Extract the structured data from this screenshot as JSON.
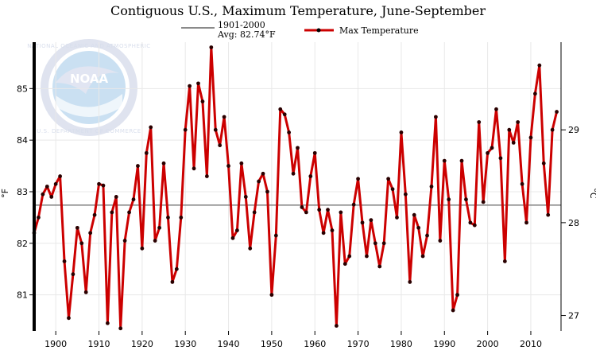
{
  "chart_data": {
    "type": "line",
    "title": "Contiguous U.S., Maximum Temperature, June-September",
    "ylabel": "°F",
    "ylabel_right": "°C",
    "xlim": [
      1895,
      2017
    ],
    "ylim": [
      80.3,
      85.9
    ],
    "xticks": [
      1900,
      1910,
      1920,
      1930,
      1940,
      1950,
      1960,
      1970,
      1980,
      1990,
      2000,
      2010
    ],
    "yticks": [
      81,
      82,
      83,
      84,
      85
    ],
    "yticks_right": [
      27,
      28,
      29
    ],
    "grid": true,
    "legend": {
      "baseline_label": "1901-2000",
      "baseline_avg_label": "Avg: 82.74°F",
      "series_label": "Max Temperature",
      "placement": "top"
    },
    "baseline": {
      "name": "1901-2000",
      "value": 82.74
    },
    "series": [
      {
        "name": "Max Temperature",
        "x": [
          1895,
          1896,
          1897,
          1898,
          1899,
          1900,
          1901,
          1902,
          1903,
          1904,
          1905,
          1906,
          1907,
          1908,
          1909,
          1910,
          1911,
          1912,
          1913,
          1914,
          1915,
          1916,
          1917,
          1918,
          1919,
          1920,
          1921,
          1922,
          1923,
          1924,
          1925,
          1926,
          1927,
          1928,
          1929,
          1930,
          1931,
          1932,
          1933,
          1934,
          1935,
          1936,
          1937,
          1938,
          1939,
          1940,
          1941,
          1942,
          1943,
          1944,
          1945,
          1946,
          1947,
          1948,
          1949,
          1950,
          1951,
          1952,
          1953,
          1954,
          1955,
          1956,
          1957,
          1958,
          1959,
          1960,
          1961,
          1962,
          1963,
          1964,
          1965,
          1966,
          1967,
          1968,
          1969,
          1970,
          1971,
          1972,
          1973,
          1974,
          1975,
          1976,
          1977,
          1978,
          1979,
          1980,
          1981,
          1982,
          1983,
          1984,
          1985,
          1986,
          1987,
          1988,
          1989,
          1990,
          1991,
          1992,
          1993,
          1994,
          1995,
          1996,
          1997,
          1998,
          1999,
          2000,
          2001,
          2002,
          2003,
          2004,
          2005,
          2006,
          2007,
          2008,
          2009,
          2010,
          2011,
          2012,
          2013,
          2014,
          2015,
          2016
        ],
        "y": [
          82.2,
          82.5,
          82.95,
          83.1,
          82.9,
          83.15,
          83.3,
          81.65,
          80.55,
          81.4,
          82.3,
          82.0,
          81.05,
          82.2,
          82.55,
          83.15,
          83.12,
          80.45,
          82.6,
          82.9,
          80.35,
          82.05,
          82.6,
          82.85,
          83.5,
          81.9,
          83.75,
          84.25,
          82.05,
          82.3,
          83.55,
          82.5,
          81.25,
          81.5,
          82.5,
          84.2,
          85.05,
          83.45,
          85.1,
          84.75,
          83.3,
          85.8,
          84.2,
          83.9,
          84.45,
          83.5,
          82.1,
          82.25,
          83.55,
          82.9,
          81.9,
          82.6,
          83.2,
          83.35,
          83.0,
          81.0,
          82.15,
          84.6,
          84.5,
          84.15,
          83.35,
          83.85,
          82.7,
          82.6,
          83.3,
          83.75,
          82.65,
          82.2,
          82.65,
          82.25,
          80.4,
          82.6,
          81.6,
          81.75,
          82.75,
          83.25,
          82.4,
          81.75,
          82.45,
          82.0,
          81.55,
          82.0,
          83.25,
          83.05,
          82.5,
          84.15,
          82.95,
          81.25,
          82.55,
          82.3,
          81.75,
          82.15,
          83.1,
          84.45,
          82.05,
          83.6,
          82.85,
          80.7,
          81.0,
          83.6,
          82.85,
          82.4,
          82.35,
          84.35,
          82.8,
          83.75,
          83.85,
          84.6,
          83.65,
          81.65,
          84.2,
          83.95,
          84.35,
          83.15,
          82.4,
          84.05,
          84.9,
          85.45,
          83.55,
          82.55,
          84.2,
          84.55
        ]
      }
    ]
  }
}
